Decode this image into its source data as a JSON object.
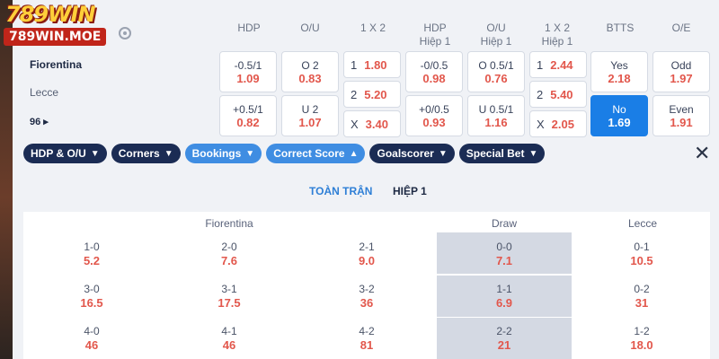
{
  "logo": {
    "line1": "789WIN",
    "line2": "789WIN.MOE"
  },
  "teams": {
    "home": "Fiorentina",
    "away": "Lecce",
    "more": "96 ▸"
  },
  "headers": {
    "hdp": "HDP",
    "ou": "O/U",
    "x12": "1 X 2",
    "hdp_h1": "HDP",
    "hdp_h1_sub": "Hiệp 1",
    "ou_h1": "O/U",
    "ou_h1_sub": "Hiệp 1",
    "x12_h1": "1 X 2",
    "x12_h1_sub": "Hiệp 1",
    "btts": "BTTS",
    "oe": "O/E"
  },
  "odds": {
    "hdp_home": {
      "label": "-0.5/1",
      "value": "1.09"
    },
    "hdp_away": {
      "label": "+0.5/1",
      "value": "0.82"
    },
    "ou_over": {
      "label": "O 2",
      "value": "0.83"
    },
    "ou_under": {
      "label": "U 2",
      "value": "1.07"
    },
    "x12_1": {
      "label": "1",
      "value": "1.80"
    },
    "x12_2": {
      "label": "2",
      "value": "5.20"
    },
    "x12_x": {
      "label": "X",
      "value": "3.40"
    },
    "hdp_h1_home": {
      "label": "-0/0.5",
      "value": "0.98"
    },
    "hdp_h1_away": {
      "label": "+0/0.5",
      "value": "0.93"
    },
    "ou_h1_over": {
      "label": "O 0.5/1",
      "value": "0.76"
    },
    "ou_h1_under": {
      "label": "U 0.5/1",
      "value": "1.16"
    },
    "x12_h1_1": {
      "label": "1",
      "value": "2.44"
    },
    "x12_h1_2": {
      "label": "2",
      "value": "5.40"
    },
    "x12_h1_x": {
      "label": "X",
      "value": "2.05"
    },
    "btts_yes": {
      "label": "Yes",
      "value": "2.18"
    },
    "btts_no": {
      "label": "No",
      "value": "1.69"
    },
    "oe_odd": {
      "label": "Odd",
      "value": "1.97"
    },
    "oe_even": {
      "label": "Even",
      "value": "1.91"
    }
  },
  "chips": {
    "hdp_ou": "HDP & O/U",
    "corners": "Corners",
    "bookings": "Bookings",
    "correct_score": "Correct Score",
    "goalscorer": "Goalscorer",
    "special_bet": "Special Bet"
  },
  "subtabs": {
    "full": "TOÀN TRẬN",
    "half": "HIỆP 1"
  },
  "columns": {
    "home": "Fiorentina",
    "draw": "Draw",
    "away": "Lecce"
  },
  "scores": {
    "r1": {
      "h1": {
        "s": "1-0",
        "o": "5.2"
      },
      "h2": {
        "s": "2-0",
        "o": "7.6"
      },
      "h3": {
        "s": "2-1",
        "o": "9.0"
      },
      "d": {
        "s": "0-0",
        "o": "7.1"
      },
      "a": {
        "s": "0-1",
        "o": "10.5"
      }
    },
    "r2": {
      "h1": {
        "s": "3-0",
        "o": "16.5"
      },
      "h2": {
        "s": "3-1",
        "o": "17.5"
      },
      "h3": {
        "s": "3-2",
        "o": "36"
      },
      "d": {
        "s": "1-1",
        "o": "6.9"
      },
      "a": {
        "s": "0-2",
        "o": "31"
      }
    },
    "r3": {
      "h1": {
        "s": "4-0",
        "o": "46"
      },
      "h2": {
        "s": "4-1",
        "o": "46"
      },
      "h3": {
        "s": "4-2",
        "o": "81"
      },
      "d": {
        "s": "2-2",
        "o": "21"
      },
      "a": {
        "s": "1-2",
        "o": "18.0"
      }
    }
  }
}
